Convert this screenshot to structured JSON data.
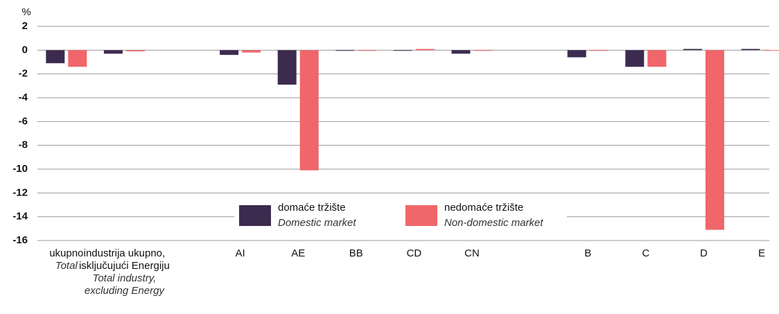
{
  "chart_data": {
    "type": "bar",
    "y_axis_label": "%",
    "categories": [
      "ukupno",
      "industrija ukupno,\nisključujući Energiju",
      null,
      "AI",
      "AE",
      "BB",
      "CD",
      "CN",
      null,
      "B",
      "C",
      "D",
      "E"
    ],
    "category_subtitles": [
      "Total",
      "Total industry,\nexcluding Energy",
      null,
      null,
      null,
      null,
      null,
      null,
      null,
      null,
      null,
      null,
      null
    ],
    "series": [
      {
        "name": "domaće tržište",
        "subtitle": "Domestic market",
        "color": "#3d2b4f",
        "values": [
          -1.1,
          -0.3,
          null,
          -0.4,
          -2.9,
          0,
          0,
          -0.3,
          null,
          -0.6,
          -1.4,
          0.1,
          0.1
        ]
      },
      {
        "name": "nedomaće tržište",
        "subtitle": "Non-domestic market",
        "color": "#f0666a",
        "values": [
          -1.4,
          -0.1,
          null,
          -0.2,
          -10.1,
          0,
          0.1,
          0,
          null,
          0,
          -1.4,
          -15.1,
          0
        ]
      }
    ],
    "ylim": [
      -16,
      2
    ],
    "yticks": [
      -16,
      -14,
      -12,
      -10,
      -8,
      -6,
      -4,
      -2,
      0,
      2
    ],
    "grid": true
  }
}
